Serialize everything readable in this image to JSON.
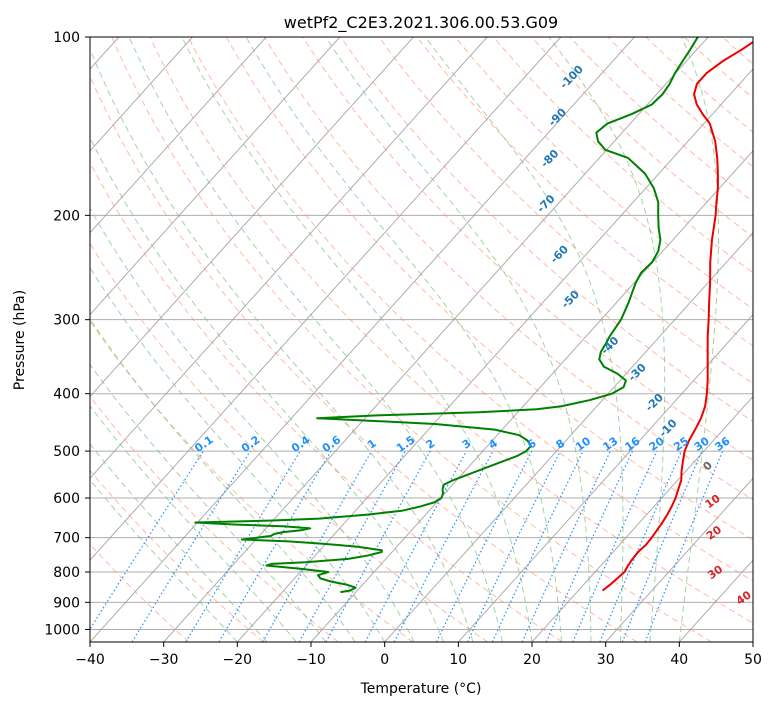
{
  "chart_data": {
    "type": "skew-t",
    "title": "wetPf2_C2E3.2021.306.00.53.G09",
    "xlabel": "Temperature (°C)",
    "ylabel": "Pressure (hPa)",
    "xlim": [
      -40,
      50
    ],
    "ylim_hpa": [
      1050,
      100
    ],
    "x_ticks": [
      -40,
      -30,
      -20,
      -10,
      0,
      10,
      20,
      30,
      40,
      50
    ],
    "y_ticks": [
      100,
      200,
      300,
      400,
      500,
      600,
      700,
      800,
      900,
      1000
    ],
    "grid": true,
    "legend": "none",
    "colors": {
      "temperature": "#ee0000",
      "dewpoint": "#008000",
      "isotherm": "#999999",
      "dry_adiabat": "#ff8c69",
      "moist_adiabat": "#7fbf7f",
      "mixing_ratio": "#1e90ff",
      "pseudoadiabat_labels": "#1f77b4",
      "dry_adiabat_labels": "#d62728"
    },
    "series": [
      {
        "kind": "temperature",
        "points": [
          [
            860,
            23.3
          ],
          [
            840,
            23.6
          ],
          [
            820,
            23.8
          ],
          [
            800,
            24.0
          ],
          [
            780,
            23.7
          ],
          [
            760,
            23.5
          ],
          [
            740,
            23.4
          ],
          [
            720,
            23.6
          ],
          [
            700,
            23.5
          ],
          [
            680,
            23.3
          ],
          [
            660,
            23.1
          ],
          [
            640,
            22.8
          ],
          [
            620,
            22.4
          ],
          [
            600,
            21.9
          ],
          [
            580,
            21.2
          ],
          [
            560,
            20.5
          ],
          [
            540,
            19.4
          ],
          [
            520,
            18.4
          ],
          [
            500,
            17.4
          ],
          [
            480,
            16.7
          ],
          [
            460,
            16.2
          ],
          [
            440,
            15.6
          ],
          [
            420,
            14.7
          ],
          [
            400,
            13.4
          ],
          [
            380,
            11.9
          ],
          [
            360,
            10.2
          ],
          [
            340,
            8.4
          ],
          [
            320,
            6.5
          ],
          [
            300,
            4.6
          ],
          [
            280,
            2.5
          ],
          [
            260,
            0.3
          ],
          [
            240,
            -2.2
          ],
          [
            220,
            -4.7
          ],
          [
            200,
            -7.2
          ],
          [
            190,
            -8.7
          ],
          [
            180,
            -10.2
          ],
          [
            170,
            -12.0
          ],
          [
            160,
            -14.0
          ],
          [
            150,
            -16.3
          ],
          [
            140,
            -19.2
          ],
          [
            135,
            -21.3
          ],
          [
            130,
            -23.3
          ],
          [
            125,
            -24.9
          ],
          [
            120,
            -25.8
          ],
          [
            115,
            -25.8
          ],
          [
            110,
            -25.1
          ],
          [
            105,
            -23.9
          ],
          [
            100,
            -22.9
          ]
        ]
      },
      {
        "kind": "dewpoint",
        "points": [
          [
            865,
            -12.1
          ],
          [
            860,
            -11.0
          ],
          [
            850,
            -10.6
          ],
          [
            840,
            -12.2
          ],
          [
            830,
            -14.7
          ],
          [
            820,
            -16.5
          ],
          [
            810,
            -17.2
          ],
          [
            800,
            -16.2
          ],
          [
            790,
            -20.4
          ],
          [
            780,
            -25.4
          ],
          [
            775,
            -24.9
          ],
          [
            770,
            -20.5
          ],
          [
            760,
            -15.1
          ],
          [
            750,
            -12.8
          ],
          [
            740,
            -11.4
          ],
          [
            735,
            -11.6
          ],
          [
            725,
            -15.3
          ],
          [
            720,
            -18.4
          ],
          [
            715,
            -21.6
          ],
          [
            710,
            -25.4
          ],
          [
            705,
            -31.9
          ],
          [
            700,
            -30.0
          ],
          [
            695,
            -28.4
          ],
          [
            690,
            -28.2
          ],
          [
            685,
            -27.2
          ],
          [
            680,
            -25.0
          ],
          [
            675,
            -24.0
          ],
          [
            670,
            -27.6
          ],
          [
            665,
            -34.8
          ],
          [
            660,
            -40.3
          ],
          [
            655,
            -30.5
          ],
          [
            650,
            -24.0
          ],
          [
            640,
            -17.9
          ],
          [
            630,
            -13.6
          ],
          [
            620,
            -11.7
          ],
          [
            610,
            -10.3
          ],
          [
            600,
            -9.9
          ],
          [
            590,
            -10.2
          ],
          [
            580,
            -10.8
          ],
          [
            570,
            -11.2
          ],
          [
            560,
            -10.5
          ],
          [
            540,
            -8.3
          ],
          [
            520,
            -6.0
          ],
          [
            510,
            -4.8
          ],
          [
            500,
            -4.1
          ],
          [
            490,
            -4.1
          ],
          [
            480,
            -5.2
          ],
          [
            470,
            -7.0
          ],
          [
            460,
            -11.0
          ],
          [
            450,
            -19.8
          ],
          [
            445,
            -28.0
          ],
          [
            440,
            -36.5
          ],
          [
            435,
            -28.4
          ],
          [
            430,
            -15.3
          ],
          [
            425,
            -7.8
          ],
          [
            420,
            -4.8
          ],
          [
            410,
            -1.7
          ],
          [
            400,
            0.5
          ],
          [
            390,
            1.3
          ],
          [
            380,
            0.8
          ],
          [
            370,
            -1.2
          ],
          [
            360,
            -3.9
          ],
          [
            350,
            -5.4
          ],
          [
            340,
            -6.1
          ],
          [
            330,
            -6.4
          ],
          [
            320,
            -6.8
          ],
          [
            300,
            -7.3
          ],
          [
            280,
            -8.4
          ],
          [
            270,
            -9.1
          ],
          [
            260,
            -9.8
          ],
          [
            250,
            -10.3
          ],
          [
            240,
            -10.1
          ],
          [
            230,
            -10.6
          ],
          [
            220,
            -11.7
          ],
          [
            210,
            -13.4
          ],
          [
            200,
            -15.0
          ],
          [
            190,
            -16.6
          ],
          [
            180,
            -18.9
          ],
          [
            170,
            -21.9
          ],
          [
            160,
            -26.1
          ],
          [
            155,
            -30.2
          ],
          [
            150,
            -32.2
          ],
          [
            145,
            -33.5
          ],
          [
            140,
            -33.1
          ],
          [
            135,
            -31.0
          ],
          [
            130,
            -29.4
          ],
          [
            125,
            -29.2
          ],
          [
            120,
            -29.5
          ],
          [
            115,
            -30.1
          ],
          [
            110,
            -30.5
          ],
          [
            105,
            -30.9
          ],
          [
            100,
            -31.4
          ]
        ]
      }
    ],
    "isopleth_labels": {
      "moist_adiabats_C": [
        "-100",
        "-90",
        "-80",
        "-70",
        "-60",
        "-50",
        "-40",
        "-30",
        "-20",
        "-10",
        "0"
      ],
      "dry_adiabats_C": [
        "10",
        "20",
        "30",
        "40"
      ],
      "mixing_ratio_gkg": [
        "0.1",
        "0.2",
        "0.4",
        "0.6",
        "1",
        "1.5",
        "2",
        "3",
        "4",
        "6",
        "8",
        "10",
        "13",
        "16",
        "20",
        "25",
        "30",
        "36"
      ]
    }
  }
}
